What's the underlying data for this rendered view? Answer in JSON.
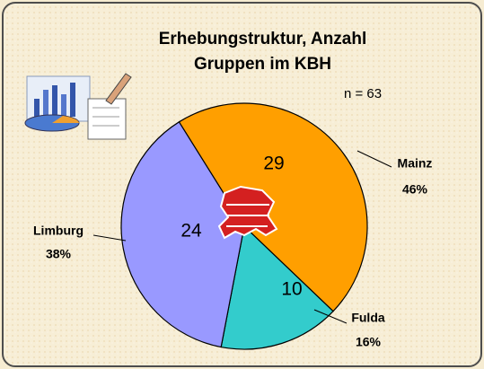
{
  "chart_data": {
    "type": "pie",
    "title": "Erhebungstruktur, Anzahl Gruppen im KBH",
    "annotation": "n =  63",
    "categories": [
      "Mainz",
      "Fulda",
      "Limburg"
    ],
    "values": [
      29,
      10,
      24
    ],
    "percent_labels": [
      "46%",
      "16%",
      "38%"
    ],
    "colors": [
      "#ff9f00",
      "#33cccc",
      "#9999ff"
    ]
  }
}
